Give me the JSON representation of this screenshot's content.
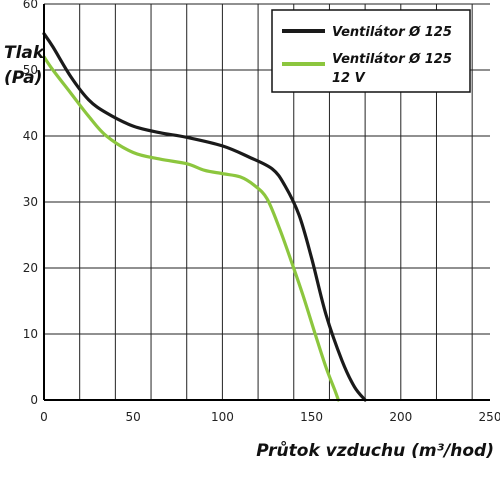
{
  "chart_data": {
    "type": "line",
    "xlabel": "Průtok vzduchu (m³/hod)",
    "ylabel_line1": "Tlak",
    "ylabel_line2": "(Pa)",
    "xlim": [
      0,
      250
    ],
    "ylim": [
      0,
      60
    ],
    "x_ticks": [
      0,
      50,
      100,
      150,
      200,
      250
    ],
    "y_ticks": [
      0,
      10,
      20,
      30,
      40,
      50,
      60
    ],
    "x_tick_labels": [
      "0",
      "50",
      "100",
      "150",
      "200",
      "250"
    ],
    "y_tick_labels": [
      "0",
      "10",
      "20",
      "30",
      "40",
      "50",
      "60"
    ],
    "grid": true,
    "legend_position": "top-right",
    "series": [
      {
        "name": "Ventilátor Ø 125",
        "color": "#1a1a1a",
        "points": [
          [
            0,
            55.5
          ],
          [
            5,
            53.5
          ],
          [
            15,
            49
          ],
          [
            25,
            45.5
          ],
          [
            35,
            43.5
          ],
          [
            50,
            41.5
          ],
          [
            65,
            40.5
          ],
          [
            80,
            39.8
          ],
          [
            100,
            38.5
          ],
          [
            115,
            36.8
          ],
          [
            128,
            35
          ],
          [
            135,
            32.5
          ],
          [
            143,
            28
          ],
          [
            150,
            21.5
          ],
          [
            158,
            13
          ],
          [
            167,
            6
          ],
          [
            174,
            2
          ],
          [
            180,
            0
          ]
        ]
      },
      {
        "name_line1": "Ventilátor Ø 125",
        "name_line2": "12 V",
        "color": "#8cc63e",
        "points": [
          [
            0,
            52
          ],
          [
            5,
            50
          ],
          [
            15,
            46.5
          ],
          [
            25,
            43
          ],
          [
            35,
            40
          ],
          [
            50,
            37.5
          ],
          [
            65,
            36.5
          ],
          [
            80,
            35.8
          ],
          [
            90,
            34.8
          ],
          [
            100,
            34.3
          ],
          [
            110,
            33.8
          ],
          [
            118,
            32.5
          ],
          [
            125,
            30.5
          ],
          [
            132,
            26
          ],
          [
            138,
            21.5
          ],
          [
            145,
            16
          ],
          [
            152,
            10
          ],
          [
            158,
            5
          ],
          [
            163,
            1.5
          ],
          [
            165,
            0
          ]
        ]
      }
    ]
  }
}
